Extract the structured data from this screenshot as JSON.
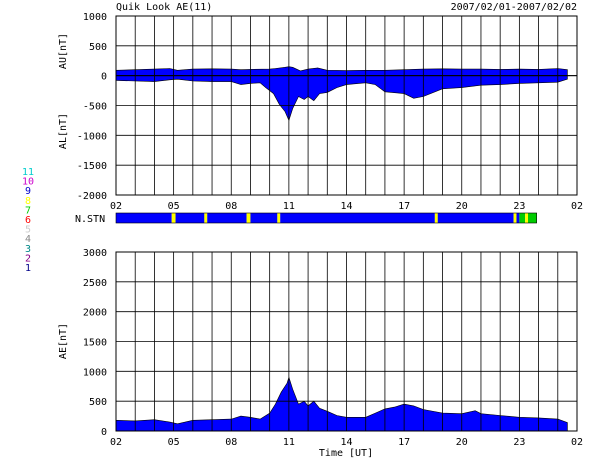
{
  "header": {
    "title": "Quik Look AE(11)",
    "date_range": "2007/02/01-2007/02/02"
  },
  "colors": {
    "background": "#ffffff",
    "grid": "#000000",
    "fill_blue": "#0000ff",
    "station_yellow": "#ffff00",
    "station_green": "#00cc00"
  },
  "station_legend": [
    {
      "label": "11",
      "color": "#00cccc"
    },
    {
      "label": "10",
      "color": "#cc00cc"
    },
    {
      "label": "9",
      "color": "#0000cc"
    },
    {
      "label": "8",
      "color": "#ffff00"
    },
    {
      "label": "7",
      "color": "#00cc00"
    },
    {
      "label": "6",
      "color": "#ff0000"
    },
    {
      "label": "5",
      "color": "#cccccc"
    },
    {
      "label": "4",
      "color": "#888888"
    },
    {
      "label": "3",
      "color": "#008888"
    },
    {
      "label": "2",
      "color": "#880088"
    },
    {
      "label": "1",
      "color": "#000088"
    }
  ],
  "xaxis": {
    "tick_labels": [
      "02",
      "05",
      "08",
      "11",
      "14",
      "17",
      "20",
      "23",
      "02"
    ],
    "label": "Time [UT]"
  },
  "chart_data": [
    {
      "type": "area",
      "panel": "AU/AL",
      "ylabel_top": "AU[nT]",
      "ylabel_bottom": "AL[nT]",
      "ylim": [
        -2000,
        1000
      ],
      "yticks": [
        1000,
        500,
        0,
        -500,
        -1000,
        -1500,
        -2000
      ],
      "xlim_hours": [
        0,
        24
      ],
      "grid": true,
      "series": [
        {
          "key": "AU",
          "x_hours": [
            0,
            1,
            2,
            2.8,
            3.2,
            4,
            5,
            6,
            6.5,
            7,
            8,
            8.3,
            8.8,
            9.0,
            9.2,
            9.6,
            10,
            10.5,
            11,
            12,
            13,
            14,
            15,
            16,
            17,
            18,
            19,
            20,
            21,
            22,
            23,
            23.5
          ],
          "values": [
            90,
            100,
            110,
            120,
            90,
            110,
            115,
            110,
            100,
            105,
            110,
            120,
            140,
            150,
            140,
            80,
            110,
            130,
            90,
            85,
            90,
            90,
            100,
            110,
            115,
            110,
            110,
            105,
            110,
            105,
            120,
            100
          ]
        },
        {
          "key": "AL",
          "x_hours": [
            0,
            1,
            2,
            2.8,
            3.2,
            4,
            5,
            6,
            6.5,
            7,
            7.5,
            7.8,
            8.0,
            8.2,
            8.5,
            8.8,
            9.0,
            9.2,
            9.5,
            9.8,
            10,
            10.3,
            10.6,
            11,
            11.5,
            12,
            13,
            13.5,
            14,
            15,
            15.5,
            16,
            17,
            18,
            19,
            20,
            21,
            22,
            23,
            23.5
          ],
          "values": [
            -80,
            -90,
            -100,
            -70,
            -60,
            -90,
            -100,
            -100,
            -150,
            -130,
            -120,
            -200,
            -250,
            -300,
            -480,
            -600,
            -750,
            -550,
            -350,
            -400,
            -350,
            -420,
            -300,
            -280,
            -200,
            -150,
            -120,
            -150,
            -270,
            -300,
            -380,
            -350,
            -220,
            -200,
            -160,
            -150,
            -130,
            -120,
            -110,
            -60
          ]
        }
      ]
    },
    {
      "type": "area",
      "panel": "AE",
      "ylabel": "AE[nT]",
      "ylim": [
        0,
        3000
      ],
      "yticks": [
        3000,
        2500,
        2000,
        1500,
        1000,
        500,
        0
      ],
      "xlim_hours": [
        0,
        24
      ],
      "grid": true,
      "series": [
        {
          "key": "AE",
          "x_hours": [
            0,
            1,
            2,
            2.8,
            3.2,
            4,
            5,
            6,
            6.5,
            7,
            7.5,
            8.0,
            8.3,
            8.6,
            8.9,
            9.0,
            9.2,
            9.5,
            9.8,
            10,
            10.3,
            10.6,
            11,
            11.5,
            12,
            13,
            13.5,
            14,
            14.5,
            15,
            15.5,
            16,
            17,
            18,
            18.7,
            19,
            20,
            21,
            22,
            23,
            23.5
          ],
          "values": [
            180,
            170,
            190,
            150,
            120,
            180,
            190,
            200,
            250,
            230,
            200,
            300,
            450,
            650,
            800,
            900,
            700,
            450,
            500,
            420,
            500,
            380,
            330,
            260,
            230,
            230,
            300,
            370,
            400,
            450,
            420,
            360,
            300,
            290,
            340,
            290,
            260,
            230,
            220,
            200,
            140
          ]
        }
      ]
    }
  ],
  "station_bar": {
    "label": "N.STN",
    "segments": [
      {
        "start": 0,
        "end": 2.9,
        "color": "#0000ff"
      },
      {
        "start": 2.9,
        "end": 3.1,
        "color": "#ffff00"
      },
      {
        "start": 3.1,
        "end": 4.6,
        "color": "#0000ff"
      },
      {
        "start": 4.6,
        "end": 4.75,
        "color": "#ffff00"
      },
      {
        "start": 4.75,
        "end": 6.8,
        "color": "#0000ff"
      },
      {
        "start": 6.8,
        "end": 7.0,
        "color": "#ffff00"
      },
      {
        "start": 7.0,
        "end": 8.4,
        "color": "#0000ff"
      },
      {
        "start": 8.4,
        "end": 8.55,
        "color": "#ffff00"
      },
      {
        "start": 8.55,
        "end": 16.6,
        "color": "#0000ff"
      },
      {
        "start": 16.6,
        "end": 16.75,
        "color": "#ffff00"
      },
      {
        "start": 16.75,
        "end": 20.7,
        "color": "#0000ff"
      },
      {
        "start": 20.7,
        "end": 20.85,
        "color": "#ffff00"
      },
      {
        "start": 20.85,
        "end": 21.0,
        "color": "#0000ff"
      },
      {
        "start": 21.0,
        "end": 21.3,
        "color": "#00cc00"
      },
      {
        "start": 21.3,
        "end": 21.45,
        "color": "#ffff00"
      },
      {
        "start": 21.45,
        "end": 21.9,
        "color": "#00cc00"
      }
    ]
  }
}
